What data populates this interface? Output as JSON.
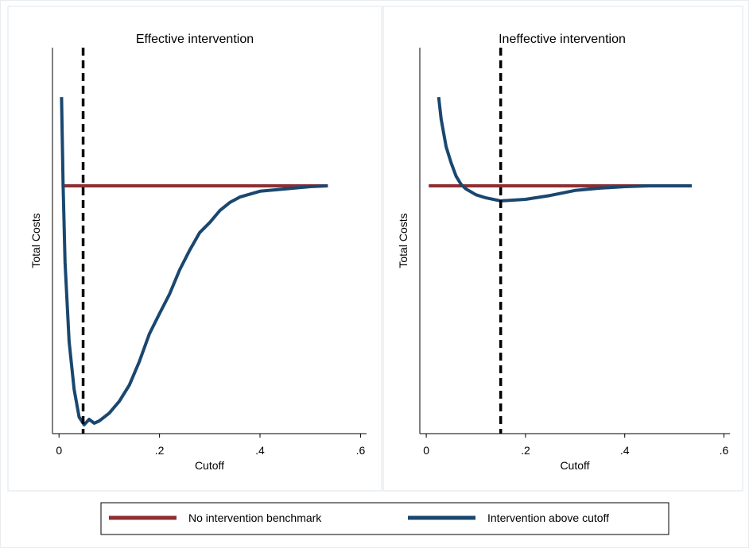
{
  "chart_data": [
    {
      "type": "line",
      "title": "Effective intervention",
      "x_label": "Cutoff",
      "y_label": "Total Costs",
      "xlim": [
        -0.013,
        0.612
      ],
      "ylim": [
        0,
        100
      ],
      "xticks": [
        0,
        {
          "value": 0.2,
          "label": ".2"
        },
        {
          "value": 0.4,
          "label": ".4"
        },
        {
          "value": 0.6,
          "label": ".6"
        }
      ],
      "vline": 0.048,
      "series": [
        {
          "name": "No intervention benchmark",
          "color": "#8c2f32",
          "x": [
            0.005,
            0.535
          ],
          "values": [
            64.2,
            64.2
          ]
        },
        {
          "name": "Intervention above cutoff",
          "color": "#1a476f",
          "x": [
            0.005,
            0.008,
            0.012,
            0.02,
            0.03,
            0.04,
            0.05,
            0.06,
            0.07,
            0.08,
            0.1,
            0.12,
            0.14,
            0.16,
            0.18,
            0.2,
            0.22,
            0.24,
            0.26,
            0.28,
            0.3,
            0.32,
            0.34,
            0.36,
            0.4,
            0.45,
            0.5,
            0.535
          ],
          "values": [
            87.2,
            65,
            44.4,
            23.9,
            11.5,
            4.3,
            2.3,
            3.7,
            2.7,
            3.3,
            5.3,
            8.4,
            12.6,
            18.7,
            25.9,
            31.1,
            36.2,
            42.4,
            47.5,
            52.1,
            54.7,
            57.8,
            59.9,
            61.3,
            62.8,
            63.4,
            64,
            64.2
          ]
        }
      ]
    },
    {
      "type": "line",
      "title": "Ineffective intervention",
      "x_label": "Cutoff",
      "y_label": "Total Costs",
      "xlim": [
        -0.013,
        0.612
      ],
      "ylim": [
        0,
        100
      ],
      "xticks": [
        0,
        {
          "value": 0.2,
          "label": ".2"
        },
        {
          "value": 0.4,
          "label": ".4"
        },
        {
          "value": 0.6,
          "label": ".6"
        }
      ],
      "vline": 0.15,
      "series": [
        {
          "color": "#8c2f32",
          "x": [
            0.005,
            0.535
          ],
          "values": [
            64.2,
            64.2
          ]
        },
        {
          "color": "#1a476f",
          "x": [
            0.025,
            0.03,
            0.04,
            0.05,
            0.06,
            0.07,
            0.08,
            0.1,
            0.12,
            0.15,
            0.2,
            0.25,
            0.3,
            0.35,
            0.4,
            0.45,
            0.535
          ],
          "values": [
            87.2,
            81.5,
            74.3,
            70.2,
            66.7,
            64.6,
            63.4,
            61.9,
            61.1,
            60.3,
            60.7,
            61.7,
            63,
            63.6,
            64,
            64.2,
            64.2
          ]
        }
      ]
    }
  ]
}
